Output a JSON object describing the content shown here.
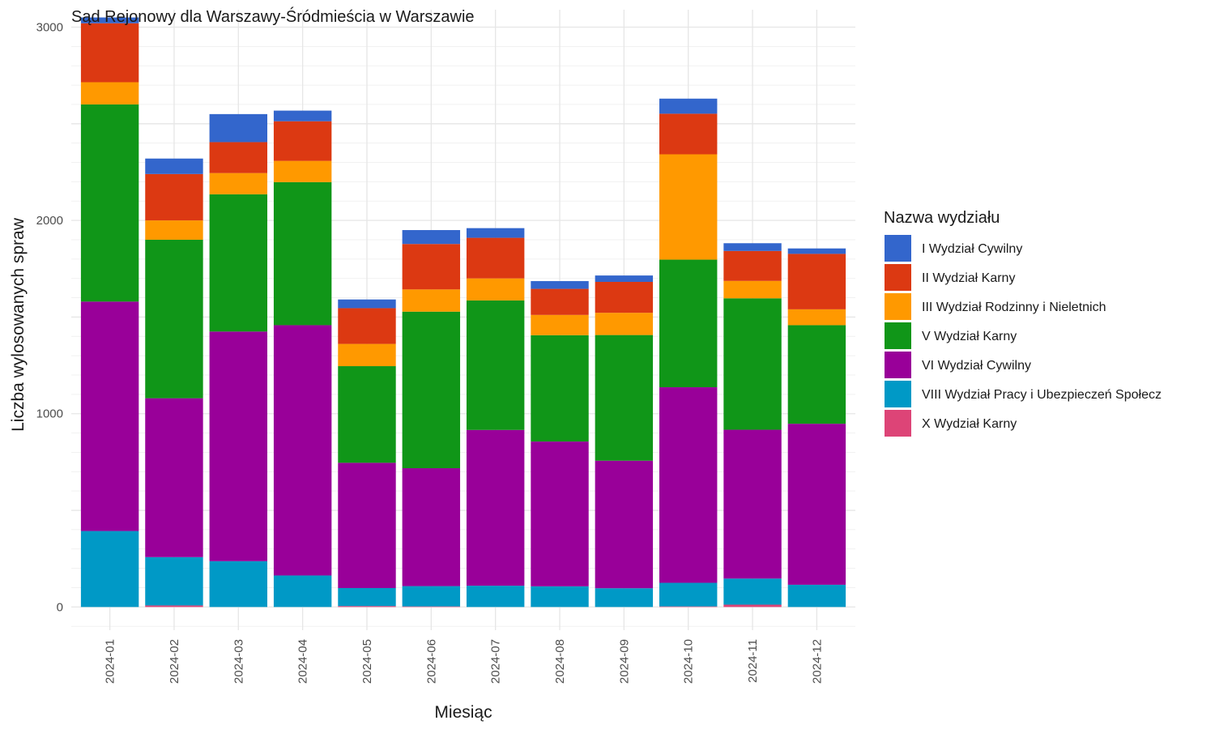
{
  "chart_data": {
    "type": "bar",
    "stacked": true,
    "title": "Sąd Rejonowy dla Warszawy-Śródmieścia w Warszawie",
    "xlabel": "Miesiąc",
    "ylabel": "Liczba wylosowanych spraw",
    "ylim": [
      -120,
      3090
    ],
    "yticks": [
      0,
      1000,
      2000,
      3000
    ],
    "grid": true,
    "legend": {
      "title": "Nazwa wydziału",
      "position": "right"
    },
    "categories": [
      "2024-01",
      "2024-02",
      "2024-03",
      "2024-04",
      "2024-05",
      "2024-06",
      "2024-07",
      "2024-08",
      "2024-09",
      "2024-10",
      "2024-11",
      "2024-12"
    ],
    "series": [
      {
        "name": "X Wydział Karny",
        "color": "#dd4477",
        "values": [
          0,
          8,
          0,
          0,
          5,
          3,
          0,
          0,
          0,
          3,
          12,
          0
        ]
      },
      {
        "name": "VIII Wydział Pracy i Ubezpieczeń Społecz",
        "color": "#0099c6",
        "values": [
          393,
          250,
          237,
          163,
          93,
          105,
          110,
          107,
          97,
          122,
          135,
          115
        ]
      },
      {
        "name": "VI Wydział Cywilny",
        "color": "#990099",
        "values": [
          1187,
          822,
          1188,
          1295,
          648,
          610,
          806,
          749,
          660,
          1012,
          770,
          833
        ]
      },
      {
        "name": "V Wydział Karny",
        "color": "#109618",
        "values": [
          1020,
          820,
          710,
          740,
          500,
          810,
          670,
          550,
          650,
          660,
          680,
          510
        ]
      },
      {
        "name": "III Wydział Rodzinny i Nieletnich",
        "color": "#ff9900",
        "values": [
          115,
          100,
          110,
          110,
          115,
          115,
          114,
          105,
          115,
          545,
          90,
          82
        ]
      },
      {
        "name": "II Wydział Karny",
        "color": "#dc3912",
        "values": [
          305,
          240,
          160,
          205,
          185,
          235,
          210,
          135,
          160,
          210,
          155,
          287
        ]
      },
      {
        "name": "I Wydział Cywilny",
        "color": "#3366cc",
        "values": [
          30,
          80,
          145,
          55,
          45,
          72,
          50,
          40,
          33,
          78,
          40,
          28
        ]
      }
    ]
  }
}
